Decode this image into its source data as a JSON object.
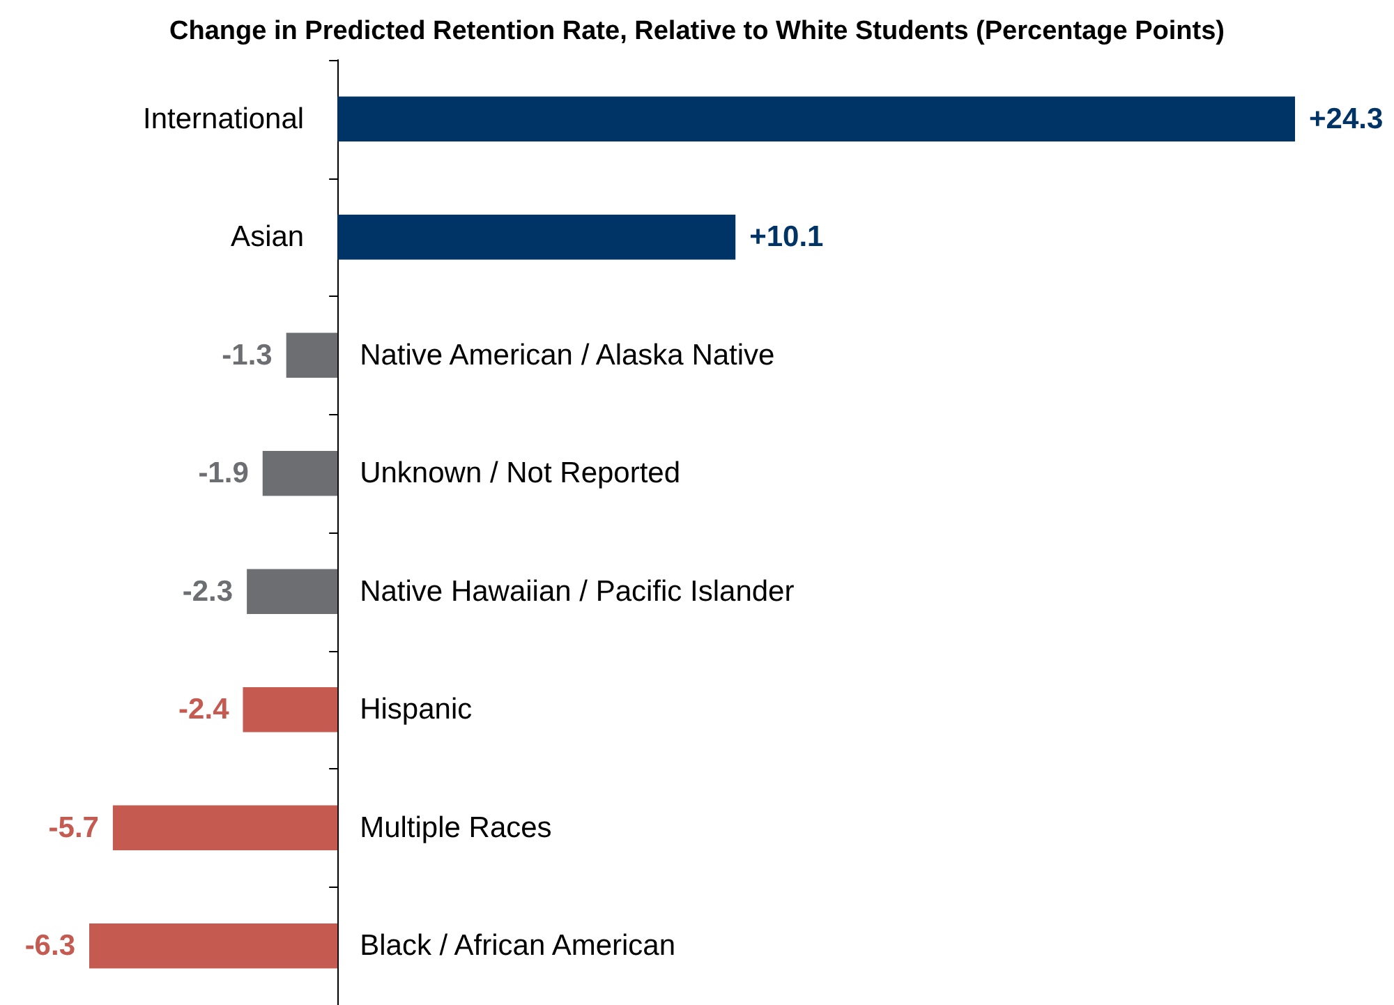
{
  "chart_data": {
    "type": "bar",
    "orientation": "horizontal",
    "title": "Change in Predicted Retention Rate, Relative to White Students (Percentage Points)",
    "categories": [
      "International",
      "Asian",
      "Native American / Alaska Native",
      "Unknown / Not Reported",
      "Native Hawaiian / Pacific Islander",
      "Hispanic",
      "Multiple Races",
      "Black / African American"
    ],
    "values": [
      24.3,
      10.1,
      -1.3,
      -1.9,
      -2.3,
      -2.4,
      -5.7,
      -6.3
    ],
    "colors": [
      "#003366",
      "#003366",
      "#6d6e71",
      "#6d6e71",
      "#6d6e71",
      "#c55a51",
      "#c55a51",
      "#c55a51"
    ],
    "value_labels": [
      "+24.3",
      "+10.1",
      "-1.3",
      "-1.9",
      "-2.3",
      "-2.4",
      "-5.7",
      "-6.3"
    ],
    "tick_labels": "y"
  }
}
